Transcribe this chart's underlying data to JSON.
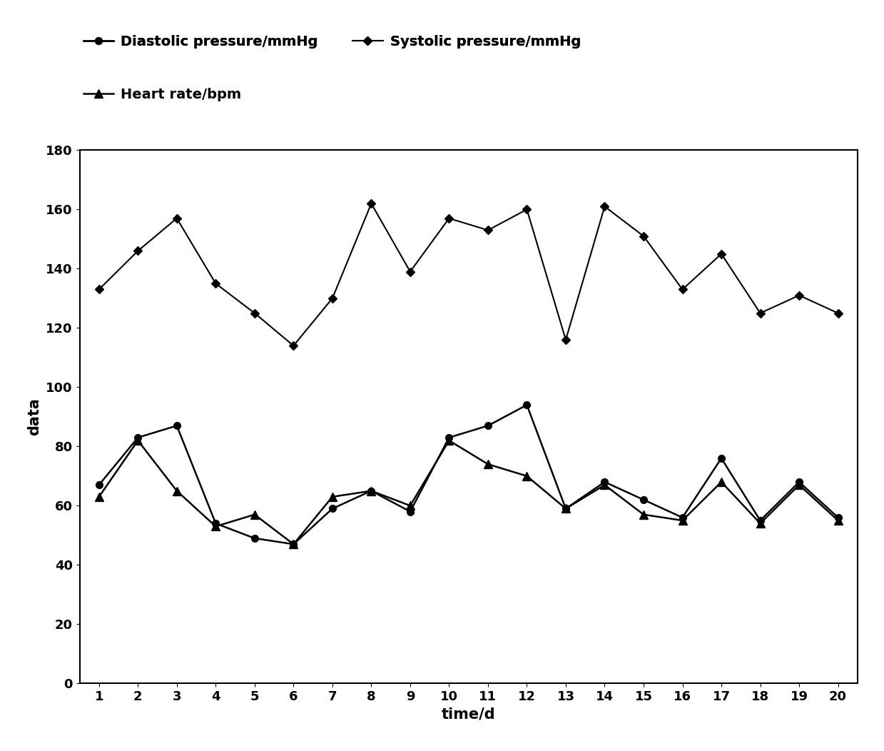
{
  "days": [
    1,
    2,
    3,
    4,
    5,
    6,
    7,
    8,
    9,
    10,
    11,
    12,
    13,
    14,
    15,
    16,
    17,
    18,
    19,
    20
  ],
  "systolic": [
    133,
    146,
    157,
    135,
    125,
    114,
    130,
    162,
    139,
    157,
    153,
    160,
    116,
    161,
    151,
    133,
    145,
    125,
    131,
    125
  ],
  "diastolic": [
    67,
    83,
    87,
    54,
    49,
    47,
    59,
    65,
    58,
    83,
    87,
    94,
    59,
    68,
    62,
    56,
    76,
    55,
    68,
    56
  ],
  "heart_rate": [
    63,
    82,
    65,
    53,
    57,
    47,
    63,
    65,
    60,
    82,
    74,
    70,
    59,
    67,
    57,
    55,
    68,
    54,
    67,
    55
  ],
  "xlabel": "time/d",
  "ylabel": "data",
  "ylim": [
    0,
    180
  ],
  "yticks": [
    0,
    20,
    40,
    60,
    80,
    100,
    120,
    140,
    160,
    180
  ],
  "line_color": "#000000",
  "background_color": "#ffffff",
  "legend_labels": [
    "Diastolic pressure/mmHg",
    "Systolic pressure/mmHg",
    "Heart rate/bpm"
  ],
  "axis_fontsize": 15,
  "tick_fontsize": 13,
  "legend_fontsize": 14,
  "fig_width": 12.39,
  "fig_height": 10.52,
  "fig_dpi": 100
}
